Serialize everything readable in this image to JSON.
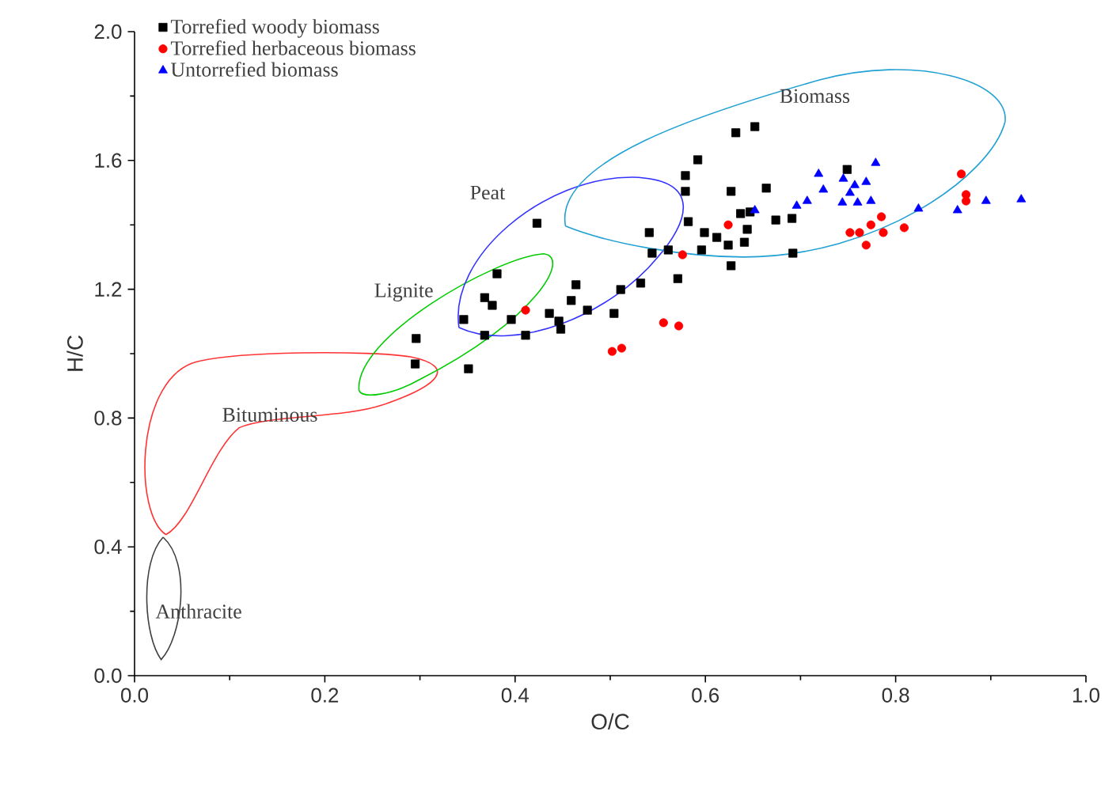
{
  "chart_data": {
    "type": "scatter",
    "xlabel": "O/C",
    "ylabel": "H/C",
    "xlim": [
      0,
      1
    ],
    "ylim": [
      0,
      2
    ],
    "xticks": [
      {
        "value": 0,
        "label": "0.0"
      },
      {
        "value": 0.2,
        "label": "0.2"
      },
      {
        "value": 0.4,
        "label": "0.4"
      },
      {
        "value": 0.6,
        "label": "0.6"
      },
      {
        "value": 0.8,
        "label": "0.8"
      },
      {
        "value": 1,
        "label": "1.0"
      }
    ],
    "yticks": [
      {
        "value": 0,
        "label": "0.0"
      },
      {
        "value": 0.4,
        "label": "0.4"
      },
      {
        "value": 0.8,
        "label": "0.8"
      },
      {
        "value": 1.2,
        "label": "1.2"
      },
      {
        "value": 1.6,
        "label": "1.6"
      },
      {
        "value": 2,
        "label": "2.0"
      }
    ],
    "legend": "top left",
    "series": [
      {
        "name": "Torrefied woody biomass",
        "marker": "square",
        "color": "#000000",
        "x": [
          0.632,
          0.652,
          0.592,
          0.579,
          0.579,
          0.627,
          0.423,
          0.541,
          0.582,
          0.599,
          0.612,
          0.624,
          0.641,
          0.637,
          0.596,
          0.544,
          0.561,
          0.627,
          0.571,
          0.381,
          0.464,
          0.511,
          0.532,
          0.368,
          0.376,
          0.459,
          0.476,
          0.436,
          0.504,
          0.346,
          0.396,
          0.446,
          0.368,
          0.411,
          0.448,
          0.296,
          0.295,
          0.351,
          0.664,
          0.647,
          0.674,
          0.691,
          0.692,
          0.749,
          0.644
        ],
        "values": [
          1.686,
          1.705,
          1.602,
          1.553,
          1.504,
          1.504,
          1.405,
          1.376,
          1.41,
          1.376,
          1.361,
          1.337,
          1.346,
          1.435,
          1.322,
          1.312,
          1.322,
          1.273,
          1.233,
          1.248,
          1.214,
          1.199,
          1.219,
          1.174,
          1.15,
          1.165,
          1.135,
          1.125,
          1.125,
          1.106,
          1.106,
          1.101,
          1.057,
          1.057,
          1.076,
          1.047,
          0.968,
          0.953,
          1.514,
          1.44,
          1.415,
          1.42,
          1.312,
          1.572,
          1.386
        ]
      },
      {
        "name": "Torrefied herbaceous biomass",
        "marker": "circle",
        "color": "#ff0000",
        "x": [
          0.869,
          0.874,
          0.874,
          0.785,
          0.774,
          0.752,
          0.769,
          0.787,
          0.809,
          0.762,
          0.411,
          0.576,
          0.624,
          0.556,
          0.572,
          0.502,
          0.512
        ],
        "values": [
          1.558,
          1.494,
          1.474,
          1.425,
          1.4,
          1.376,
          1.337,
          1.376,
          1.391,
          1.376,
          1.135,
          1.307,
          1.4,
          1.096,
          1.086,
          1.007,
          1.017
        ]
      },
      {
        "name": "Untorrefied biomass",
        "marker": "triangle",
        "color": "#0000ff",
        "x": [
          0.719,
          0.707,
          0.696,
          0.745,
          0.757,
          0.769,
          0.779,
          0.744,
          0.76,
          0.774,
          0.752,
          0.724,
          0.652,
          0.824,
          0.865,
          0.895,
          0.932
        ],
        "values": [
          1.558,
          1.474,
          1.459,
          1.543,
          1.523,
          1.533,
          1.592,
          1.469,
          1.469,
          1.474,
          1.499,
          1.509,
          1.445,
          1.45,
          1.445,
          1.474,
          1.479
        ]
      }
    ],
    "annotations": [
      "Anthracite",
      "Bituminous",
      "Lignite",
      "Peat",
      "Biomass"
    ]
  }
}
